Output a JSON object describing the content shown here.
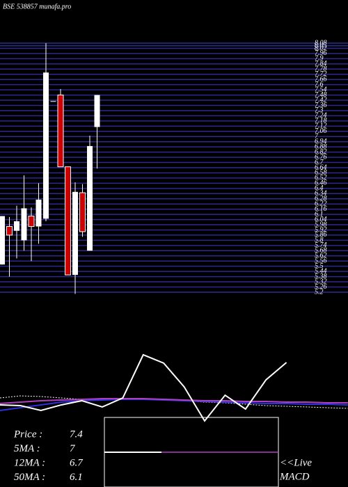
{
  "title": "BSE 538857 munafa.pro",
  "chart_data": [
    {
      "type": "candlestick",
      "categories": [
        null,
        null,
        null,
        null,
        null,
        null,
        null,
        null,
        null,
        null,
        null,
        null,
        null,
        null
      ],
      "open": [
        5.52,
        5.96,
        5.91,
        5.8,
        6.08,
        5.96,
        6.05,
        7.41,
        7.48,
        6.65,
        5.4,
        6.35,
        5.68,
        7.11
      ],
      "high": [
        6.08,
        6.07,
        6.2,
        6.55,
        6.18,
        6.46,
        8.08,
        7.41,
        7.55,
        6.65,
        6.47,
        6.45,
        7.01,
        7.48
      ],
      "low": [
        5.52,
        5.38,
        5.59,
        5.68,
        5.56,
        5.76,
        6.02,
        7.41,
        6.65,
        5.4,
        5.18,
        5.84,
        5.68,
        6.63
      ],
      "close": [
        6.08,
        5.86,
        6.02,
        6.17,
        5.96,
        6.27,
        7.74,
        7.41,
        6.65,
        5.4,
        6.36,
        5.9,
        6.89,
        7.48
      ],
      "up_color": "#ffffff",
      "down_color": "#cc0000",
      "ylim": [
        5.1,
        8.15
      ],
      "yticks": [
        5.2,
        5.26,
        5.32,
        5.38,
        5.44,
        5.5,
        5.56,
        5.62,
        5.68,
        5.74,
        5.8,
        5.86,
        5.92,
        5.98,
        6.04,
        6.1,
        6.16,
        6.22,
        6.28,
        6.34,
        6.4,
        6.46,
        6.52,
        6.58,
        6.64,
        6.7,
        6.76,
        6.82,
        6.88,
        6.94,
        7,
        7.06,
        7.12,
        7.18,
        7.24,
        7.3,
        7.36,
        7.42,
        7.48,
        7.54,
        7.6,
        7.66,
        7.72,
        7.78,
        7.84,
        7.9,
        7.96,
        8.02,
        8.05,
        8.08
      ],
      "grid": true,
      "grid_color": "#2a2a90"
    },
    {
      "type": "line",
      "categories": [
        null,
        null,
        null,
        null,
        null,
        null,
        null,
        null,
        null,
        null,
        null,
        null,
        null,
        null,
        null,
        null,
        null,
        null
      ],
      "ylim": [
        0,
        100
      ],
      "series": [
        {
          "color": "#ffffff",
          "dash": true,
          "values": [
            40,
            42.5,
            41.7,
            40,
            38.3,
            38.3,
            39.2,
            39.2,
            38.3,
            36.7,
            35,
            34.2,
            32.5,
            30.8,
            30,
            29.2,
            28.3,
            27.5
          ]
        },
        {
          "color": "#3030e0",
          "dash": false,
          "values": [
            25,
            28.3,
            31.7,
            35,
            36.7,
            37.5,
            38.3,
            38.3,
            37.5,
            36.7,
            35.8,
            35,
            34.2,
            33.3,
            33.3,
            32.5,
            32.5,
            31.7
          ]
        },
        {
          "color": "#b040c0",
          "dash": false,
          "values": [
            33.3,
            35,
            36.7,
            37.5,
            38.3,
            39.2,
            39.2,
            39.2,
            38.3,
            37.5,
            36.7,
            36.7,
            35.8,
            35.8,
            35,
            35,
            34.2,
            34.2
          ]
        },
        {
          "color": "#ffffff",
          "dash": false,
          "values": [
            31.7,
            30.8,
            25,
            31.7,
            36.7,
            29.2,
            40,
            91.7,
            81.7,
            53.3,
            12.5,
            43.3,
            26.7,
            61.7,
            82.5,
            null,
            null,
            null
          ]
        }
      ]
    }
  ],
  "info": [
    {
      "label": "Price   :",
      "value": 7.4
    },
    {
      "label": "5MA :",
      "value": 7
    },
    {
      "label": "12MA :",
      "value": 6.7
    },
    {
      "label": "50MA :",
      "value": 6.1
    }
  ],
  "live": "<<Live",
  "indicator": "MACD"
}
